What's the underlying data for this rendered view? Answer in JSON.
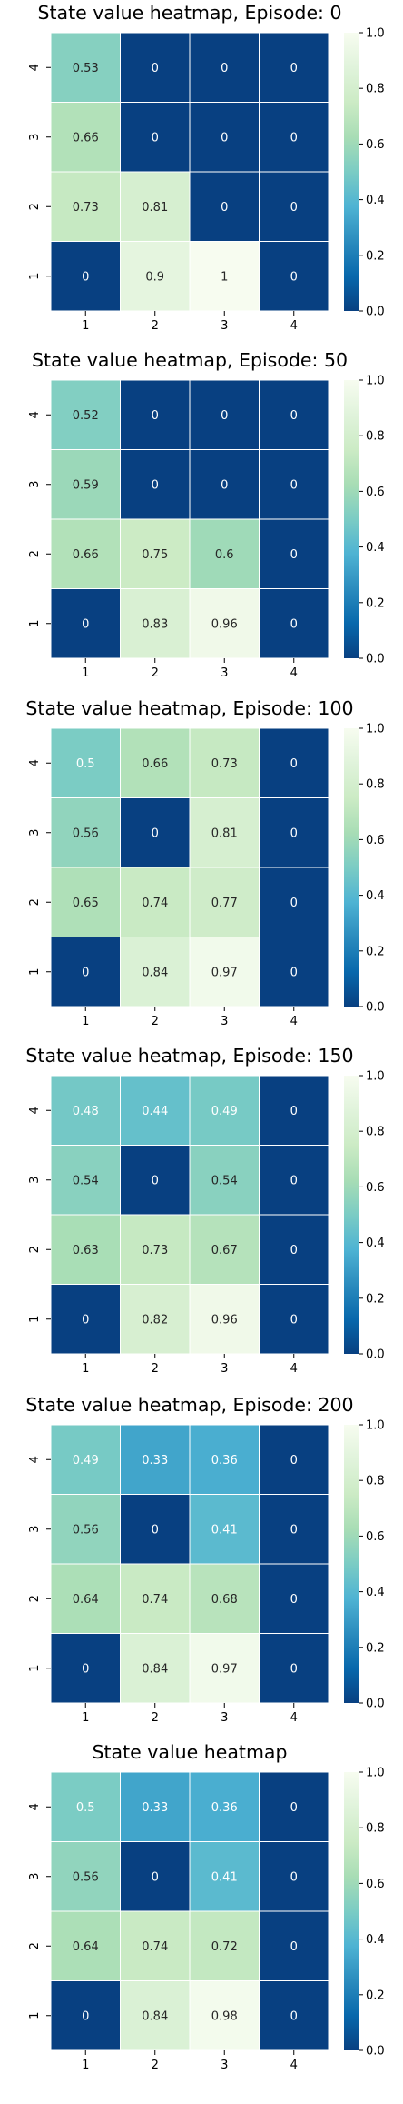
{
  "chart_data": [
    {
      "type": "heatmap",
      "title": "State value heatmap, Episode: 0",
      "x_categories": [
        "1",
        "2",
        "3",
        "4"
      ],
      "y_categories": [
        "4",
        "3",
        "2",
        "1"
      ],
      "values": [
        [
          0.53,
          0,
          0,
          0
        ],
        [
          0.66,
          0,
          0,
          0
        ],
        [
          0.73,
          0.81,
          0,
          0
        ],
        [
          0,
          0.9,
          1,
          0
        ]
      ],
      "value_labels": [
        [
          "0.53",
          "0",
          "0",
          "0"
        ],
        [
          "0.66",
          "0",
          "0",
          "0"
        ],
        [
          "0.73",
          "0.81",
          "0",
          "0"
        ],
        [
          "0",
          "0.9",
          "1",
          "0"
        ]
      ],
      "colorbar": {
        "range": [
          0,
          1
        ],
        "ticks": [
          "0.0",
          "0.2",
          "0.4",
          "0.6",
          "0.8",
          "1.0"
        ],
        "colormap": "GnBu_r"
      }
    },
    {
      "type": "heatmap",
      "title": "State value heatmap, Episode: 50",
      "x_categories": [
        "1",
        "2",
        "3",
        "4"
      ],
      "y_categories": [
        "4",
        "3",
        "2",
        "1"
      ],
      "values": [
        [
          0.52,
          0,
          0,
          0
        ],
        [
          0.59,
          0,
          0,
          0
        ],
        [
          0.66,
          0.75,
          0.6,
          0
        ],
        [
          0,
          0.83,
          0.96,
          0
        ]
      ],
      "value_labels": [
        [
          "0.52",
          "0",
          "0",
          "0"
        ],
        [
          "0.59",
          "0",
          "0",
          "0"
        ],
        [
          "0.66",
          "0.75",
          "0.6",
          "0"
        ],
        [
          "0",
          "0.83",
          "0.96",
          "0"
        ]
      ],
      "colorbar": {
        "range": [
          0,
          1
        ],
        "ticks": [
          "0.0",
          "0.2",
          "0.4",
          "0.6",
          "0.8",
          "1.0"
        ],
        "colormap": "GnBu_r"
      }
    },
    {
      "type": "heatmap",
      "title": "State value heatmap, Episode: 100",
      "x_categories": [
        "1",
        "2",
        "3",
        "4"
      ],
      "y_categories": [
        "4",
        "3",
        "2",
        "1"
      ],
      "values": [
        [
          0.5,
          0.66,
          0.73,
          0
        ],
        [
          0.56,
          0,
          0.81,
          0
        ],
        [
          0.65,
          0.74,
          0.77,
          0
        ],
        [
          0,
          0.84,
          0.97,
          0
        ]
      ],
      "value_labels": [
        [
          "0.5",
          "0.66",
          "0.73",
          "0"
        ],
        [
          "0.56",
          "0",
          "0.81",
          "0"
        ],
        [
          "0.65",
          "0.74",
          "0.77",
          "0"
        ],
        [
          "0",
          "0.84",
          "0.97",
          "0"
        ]
      ],
      "colorbar": {
        "range": [
          0,
          1
        ],
        "ticks": [
          "0.0",
          "0.2",
          "0.4",
          "0.6",
          "0.8",
          "1.0"
        ],
        "colormap": "GnBu_r"
      }
    },
    {
      "type": "heatmap",
      "title": "State value heatmap, Episode: 150",
      "x_categories": [
        "1",
        "2",
        "3",
        "4"
      ],
      "y_categories": [
        "4",
        "3",
        "2",
        "1"
      ],
      "values": [
        [
          0.48,
          0.44,
          0.49,
          0
        ],
        [
          0.54,
          0,
          0.54,
          0
        ],
        [
          0.63,
          0.73,
          0.67,
          0
        ],
        [
          0,
          0.82,
          0.96,
          0
        ]
      ],
      "value_labels": [
        [
          "0.48",
          "0.44",
          "0.49",
          "0"
        ],
        [
          "0.54",
          "0",
          "0.54",
          "0"
        ],
        [
          "0.63",
          "0.73",
          "0.67",
          "0"
        ],
        [
          "0",
          "0.82",
          "0.96",
          "0"
        ]
      ],
      "colorbar": {
        "range": [
          0,
          1
        ],
        "ticks": [
          "0.0",
          "0.2",
          "0.4",
          "0.6",
          "0.8",
          "1.0"
        ],
        "colormap": "GnBu_r"
      }
    },
    {
      "type": "heatmap",
      "title": "State value heatmap, Episode: 200",
      "x_categories": [
        "1",
        "2",
        "3",
        "4"
      ],
      "y_categories": [
        "4",
        "3",
        "2",
        "1"
      ],
      "values": [
        [
          0.49,
          0.33,
          0.36,
          0
        ],
        [
          0.56,
          0,
          0.41,
          0
        ],
        [
          0.64,
          0.74,
          0.68,
          0
        ],
        [
          0,
          0.84,
          0.97,
          0
        ]
      ],
      "value_labels": [
        [
          "0.49",
          "0.33",
          "0.36",
          "0"
        ],
        [
          "0.56",
          "0",
          "0.41",
          "0"
        ],
        [
          "0.64",
          "0.74",
          "0.68",
          "0"
        ],
        [
          "0",
          "0.84",
          "0.97",
          "0"
        ]
      ],
      "colorbar": {
        "range": [
          0,
          1
        ],
        "ticks": [
          "0.0",
          "0.2",
          "0.4",
          "0.6",
          "0.8",
          "1.0"
        ],
        "colormap": "GnBu_r"
      }
    },
    {
      "type": "heatmap",
      "title": "State value heatmap",
      "x_categories": [
        "1",
        "2",
        "3",
        "4"
      ],
      "y_categories": [
        "4",
        "3",
        "2",
        "1"
      ],
      "values": [
        [
          0.5,
          0.33,
          0.36,
          0
        ],
        [
          0.56,
          0,
          0.41,
          0
        ],
        [
          0.64,
          0.74,
          0.72,
          0
        ],
        [
          0,
          0.84,
          0.98,
          0
        ]
      ],
      "value_labels": [
        [
          "0.5",
          "0.33",
          "0.36",
          "0"
        ],
        [
          "0.56",
          "0",
          "0.41",
          "0"
        ],
        [
          "0.64",
          "0.74",
          "0.72",
          "0"
        ],
        [
          "0",
          "0.84",
          "0.98",
          "0"
        ]
      ],
      "colorbar": {
        "range": [
          0,
          1
        ],
        "ticks": [
          "0.0",
          "0.2",
          "0.4",
          "0.6",
          "0.8",
          "1.0"
        ],
        "colormap": "GnBu_r"
      }
    }
  ]
}
